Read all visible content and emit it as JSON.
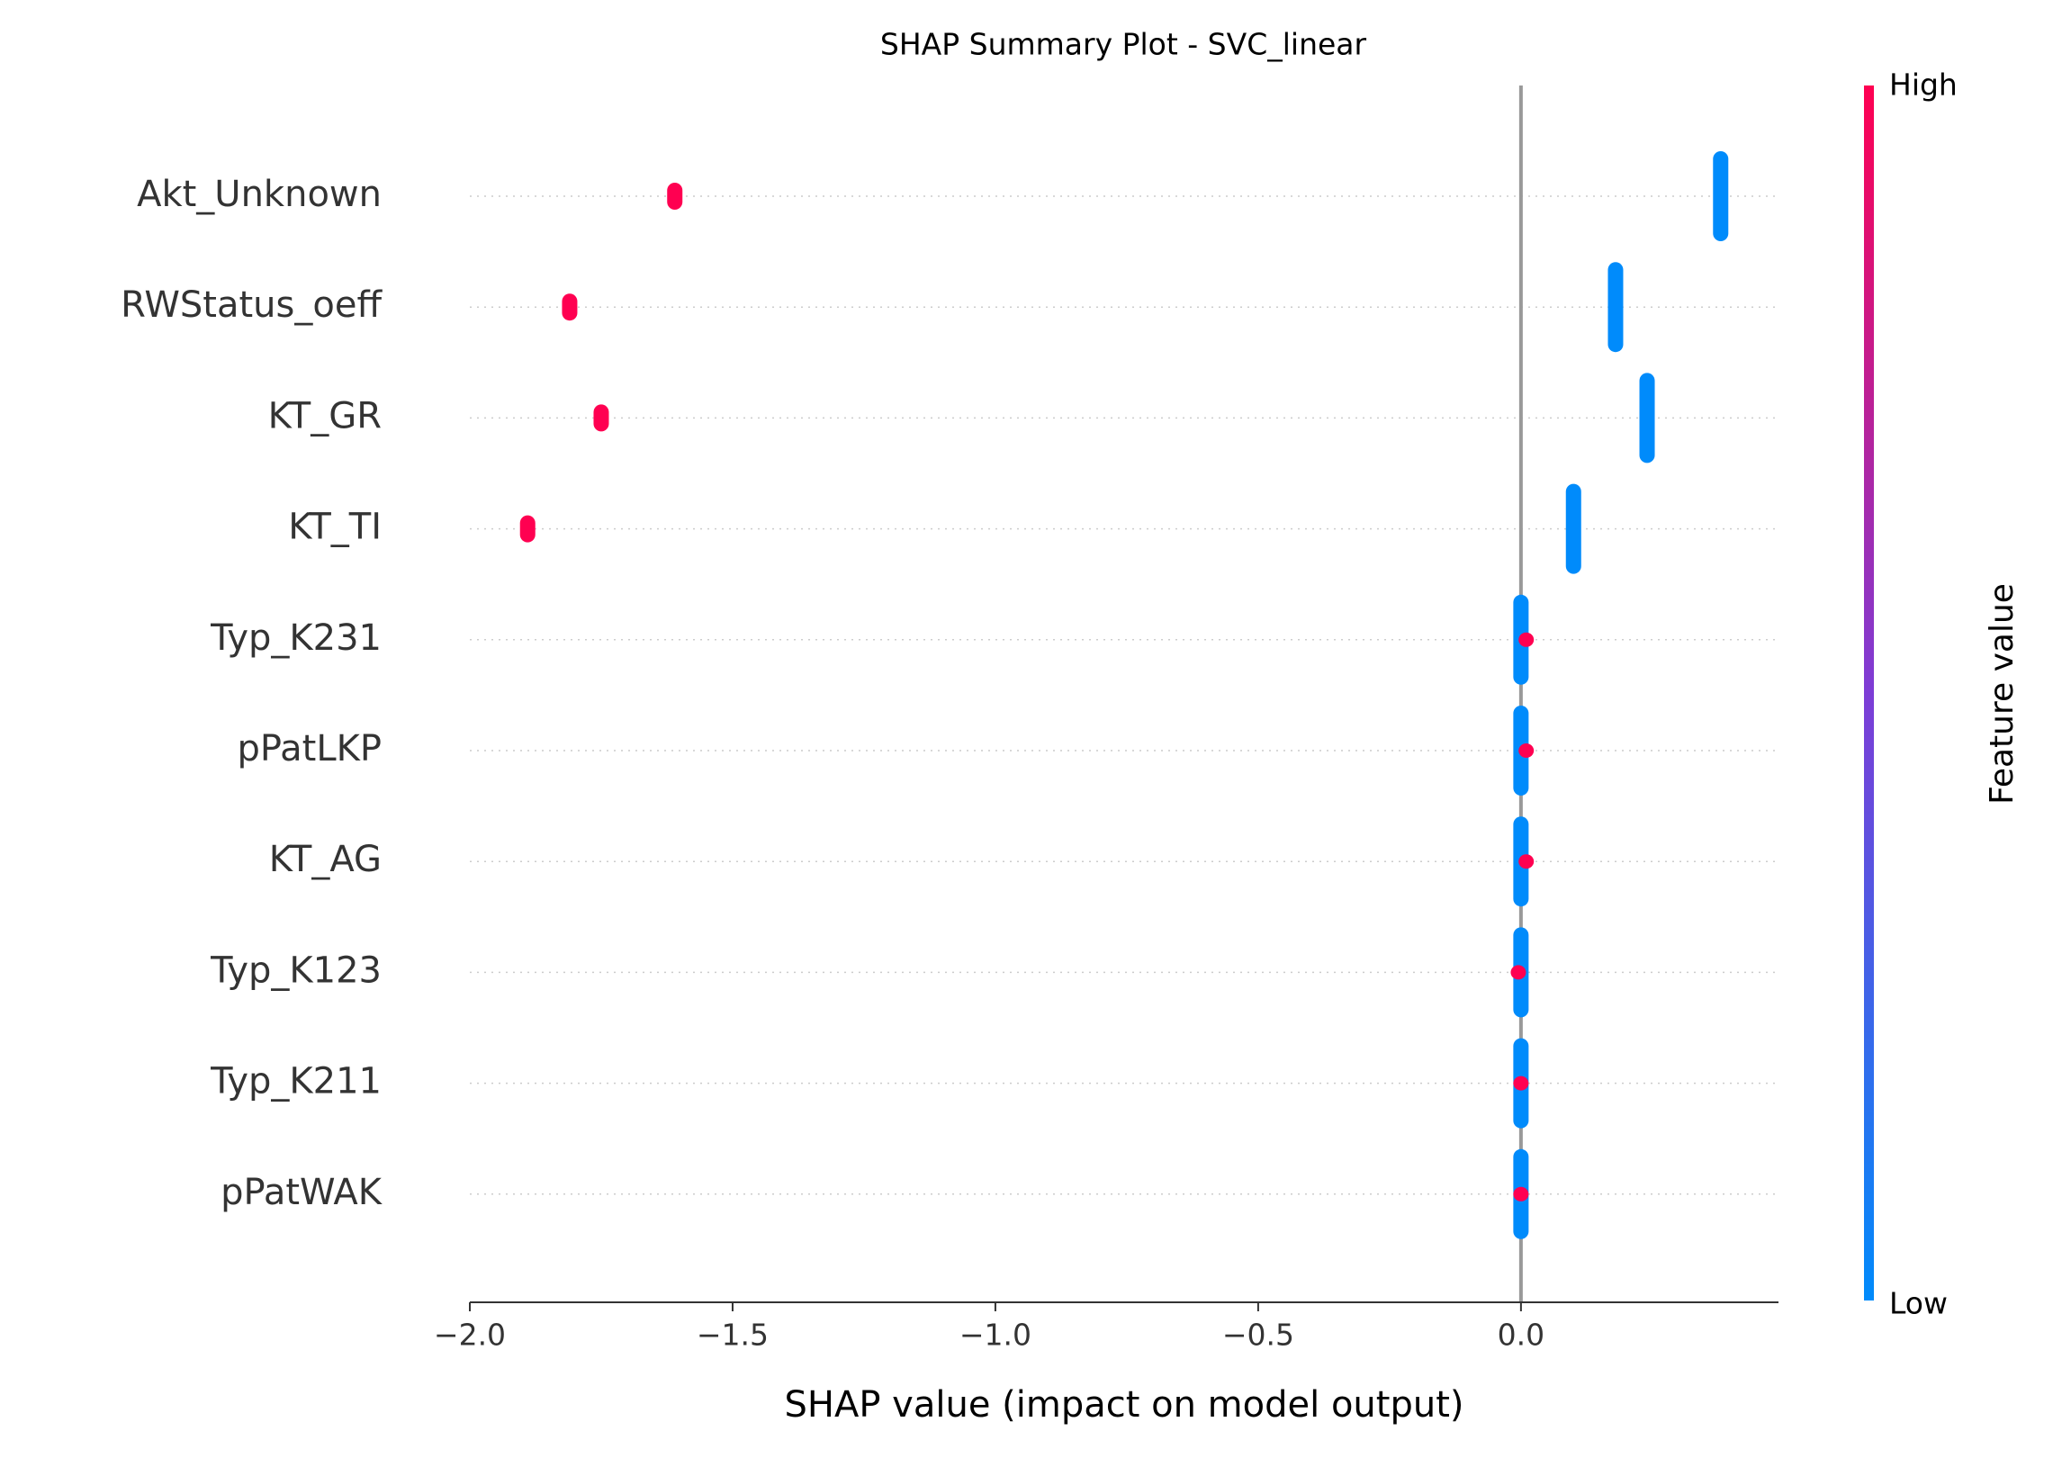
{
  "chart_data": {
    "type": "beeswarm",
    "title": "SHAP Summary Plot - SVC_linear",
    "x_label": "SHAP value (impact on model output)",
    "categories": [
      "Akt_Unknown",
      "RWStatus_oeff",
      "KT_GR",
      "KT_TI",
      "Typ_K231",
      "pPatLKP",
      "KT_AG",
      "Typ_K123",
      "Typ_K211",
      "pPatWAK"
    ],
    "series": [
      {
        "name": "High",
        "color": "#ff0051",
        "values": [
          -1.61,
          -1.81,
          -1.75,
          -1.89,
          0.01,
          0.01,
          0.01,
          -0.005,
          0.0,
          0.0
        ]
      },
      {
        "name": "Low",
        "color": "#008bfb",
        "values": [
          0.38,
          0.18,
          0.24,
          0.1,
          0.0,
          0.0,
          0.0,
          0.0,
          0.0,
          0.0
        ]
      }
    ],
    "xlim": [
      -2.0,
      0.49
    ],
    "xticks": [
      {
        "value": -2.0,
        "label": "−2.0"
      },
      {
        "value": -1.5,
        "label": "−1.5"
      },
      {
        "value": -1.0,
        "label": "−1.0"
      },
      {
        "value": -0.5,
        "label": "−0.5"
      },
      {
        "value": 0.0,
        "label": "0.0"
      }
    ],
    "colorbar": {
      "label": "Feature value",
      "high_label": "High",
      "low_label": "Low",
      "high_color": "#ff0051",
      "mid_color": "#7d3dd6",
      "low_color": "#008bfb"
    },
    "grid": true
  }
}
